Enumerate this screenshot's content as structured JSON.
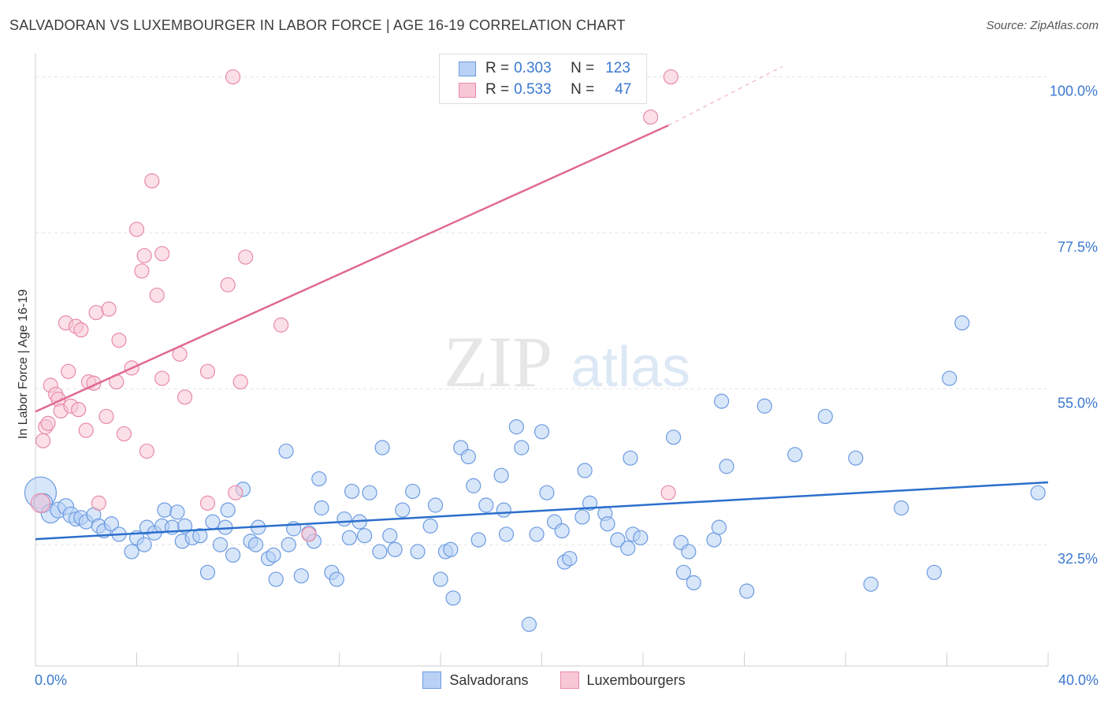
{
  "header": {
    "title": "SALVADORAN VS LUXEMBOURGER IN LABOR FORCE | AGE 16-19 CORRELATION CHART",
    "source": "Source: ZipAtlas.com"
  },
  "watermark": {
    "zip": "ZIP",
    "atlas": "atlas"
  },
  "legend": {
    "r_label": "R =",
    "n_label": "N =",
    "rows": [
      {
        "r": "0.303",
        "n": "123",
        "fill": "#b8d1f5",
        "stroke": "#6c9be0"
      },
      {
        "r": "0.533",
        "n": "47",
        "fill": "#f7c7d6",
        "stroke": "#e98aa8"
      }
    ]
  },
  "chart_data": {
    "type": "scatter",
    "title": "SALVADORAN VS LUXEMBOURGER IN LABOR FORCE | AGE 16-19 CORRELATION CHART",
    "xlabel": "",
    "ylabel": "In Labor Force | Age 16-19",
    "xlim": [
      0,
      40
    ],
    "ylim": [
      15,
      102
    ],
    "x_tick_labels": [
      "0.0%",
      "40.0%"
    ],
    "y_ticks": [
      32.5,
      55.0,
      77.5,
      100.0
    ],
    "y_tick_labels": [
      "32.5%",
      "55.0%",
      "77.5%",
      "100.0%"
    ],
    "grid": true,
    "legend_position": "top-center",
    "series": [
      {
        "name": "Salvadorans",
        "color": "#6c9be0",
        "fill": "#b8d1f5",
        "trend": {
          "x": [
            0,
            40
          ],
          "y": [
            33.3,
            41.5
          ],
          "color": "#2b6fcc"
        },
        "points": [
          [
            0.2,
            40,
            20
          ],
          [
            0.3,
            38.5,
            12
          ],
          [
            0.6,
            37,
            12
          ],
          [
            0.9,
            37.5,
            10
          ],
          [
            1.2,
            38,
            10
          ],
          [
            1.4,
            36.8,
            10
          ],
          [
            1.6,
            36.2,
            9
          ],
          [
            1.8,
            36.4,
            9
          ],
          [
            2.0,
            35.8,
            9
          ],
          [
            2.3,
            36.8,
            9
          ],
          [
            2.5,
            35.2,
            9
          ],
          [
            2.7,
            34.5,
            9
          ],
          [
            3.0,
            35.5,
            9
          ],
          [
            3.3,
            34,
            9
          ],
          [
            3.8,
            31.5,
            9
          ],
          [
            4.0,
            33.5,
            9
          ],
          [
            4.3,
            32.5,
            9
          ],
          [
            4.4,
            35,
            9
          ],
          [
            4.7,
            34.2,
            9
          ],
          [
            5.0,
            35.2,
            9
          ],
          [
            5.1,
            37.5,
            9
          ],
          [
            5.4,
            35,
            9
          ],
          [
            5.6,
            37.2,
            9
          ],
          [
            5.8,
            33,
            9
          ],
          [
            5.9,
            35.2,
            9
          ],
          [
            6.2,
            33.5,
            9
          ],
          [
            6.5,
            33.8,
            9
          ],
          [
            6.8,
            28.5,
            9
          ],
          [
            7.0,
            35.8,
            9
          ],
          [
            7.3,
            32.5,
            9
          ],
          [
            7.5,
            35,
            9
          ],
          [
            7.6,
            37.5,
            9
          ],
          [
            7.8,
            31,
            9
          ],
          [
            8.2,
            40.5,
            9
          ],
          [
            8.5,
            33,
            9
          ],
          [
            8.7,
            32.5,
            9
          ],
          [
            8.8,
            35,
            9
          ],
          [
            9.2,
            30.5,
            9
          ],
          [
            9.4,
            31,
            9
          ],
          [
            9.5,
            27.5,
            9
          ],
          [
            9.9,
            46,
            9
          ],
          [
            10.0,
            32.5,
            9
          ],
          [
            10.2,
            34.8,
            9
          ],
          [
            10.5,
            28,
            9
          ],
          [
            10.8,
            34.2,
            9
          ],
          [
            11.0,
            33,
            9
          ],
          [
            11.2,
            42,
            9
          ],
          [
            11.3,
            37.8,
            9
          ],
          [
            11.7,
            28.5,
            9
          ],
          [
            11.9,
            27.5,
            9
          ],
          [
            12.2,
            36.2,
            9
          ],
          [
            12.4,
            33.5,
            9
          ],
          [
            12.5,
            40.2,
            9
          ],
          [
            12.8,
            35.8,
            9
          ],
          [
            13.0,
            33.8,
            9
          ],
          [
            13.2,
            40,
            9
          ],
          [
            13.6,
            31.5,
            9
          ],
          [
            13.7,
            46.5,
            9
          ],
          [
            14.0,
            33.8,
            9
          ],
          [
            14.2,
            31.8,
            9
          ],
          [
            14.5,
            37.5,
            9
          ],
          [
            14.9,
            40.2,
            9
          ],
          [
            15.1,
            31.5,
            9
          ],
          [
            15.6,
            35.2,
            9
          ],
          [
            15.8,
            38.2,
            9
          ],
          [
            16.0,
            27.5,
            9
          ],
          [
            16.2,
            31.5,
            9
          ],
          [
            16.4,
            31.8,
            9
          ],
          [
            16.5,
            24.8,
            9
          ],
          [
            16.8,
            46.5,
            9
          ],
          [
            17.1,
            45.2,
            9
          ],
          [
            17.3,
            41,
            9
          ],
          [
            17.5,
            33.2,
            9
          ],
          [
            17.8,
            38.2,
            9
          ],
          [
            18.4,
            42.5,
            9
          ],
          [
            18.5,
            37.5,
            9
          ],
          [
            18.6,
            34,
            9
          ],
          [
            19.0,
            49.5,
            9
          ],
          [
            19.2,
            46.5,
            9
          ],
          [
            19.5,
            21,
            9
          ],
          [
            19.8,
            34,
            9
          ],
          [
            20.0,
            48.8,
            9
          ],
          [
            20.2,
            40,
            9
          ],
          [
            20.5,
            35.8,
            9
          ],
          [
            20.8,
            34.5,
            9
          ],
          [
            20.9,
            30,
            9
          ],
          [
            21.1,
            30.5,
            9
          ],
          [
            21.6,
            36.5,
            9
          ],
          [
            21.7,
            43.2,
            9
          ],
          [
            21.9,
            38.5,
            9
          ],
          [
            22.5,
            37,
            9
          ],
          [
            22.6,
            35.5,
            9
          ],
          [
            23.0,
            33.2,
            9
          ],
          [
            23.4,
            32,
            9
          ],
          [
            23.5,
            45,
            9
          ],
          [
            23.6,
            34,
            9
          ],
          [
            23.9,
            33.5,
            9
          ],
          [
            25.2,
            48,
            9
          ],
          [
            25.5,
            32.8,
            9
          ],
          [
            25.6,
            28.5,
            9
          ],
          [
            25.8,
            31.5,
            9
          ],
          [
            26.0,
            27,
            9
          ],
          [
            26.8,
            33.2,
            9
          ],
          [
            27.0,
            35,
            9
          ],
          [
            27.3,
            43.8,
            9
          ],
          [
            27.1,
            53.2,
            9
          ],
          [
            28.1,
            25.8,
            9
          ],
          [
            28.8,
            52.5,
            9
          ],
          [
            30.0,
            45.5,
            9
          ],
          [
            31.2,
            51,
            9
          ],
          [
            32.4,
            45,
            9
          ],
          [
            33.0,
            26.8,
            9
          ],
          [
            34.2,
            37.8,
            9
          ],
          [
            35.5,
            28.5,
            9
          ],
          [
            36.1,
            56.5,
            9
          ],
          [
            36.6,
            64.5,
            9
          ],
          [
            39.6,
            40,
            9
          ]
        ]
      },
      {
        "name": "Luxembourgers",
        "color": "#e98aa8",
        "fill": "#f7c7d6",
        "trend": {
          "x": [
            0,
            25
          ],
          "y": [
            51.7,
            93
          ],
          "color": "#e06a92"
        },
        "trend_dashed": {
          "x": [
            25,
            29.5
          ],
          "y": [
            93,
            101.5
          ]
        },
        "points": [
          [
            0.2,
            38.5,
            12
          ],
          [
            0.3,
            47.5,
            9
          ],
          [
            0.4,
            49.5,
            9
          ],
          [
            0.5,
            50,
            9
          ],
          [
            0.6,
            55.5,
            9
          ],
          [
            0.8,
            54.2,
            9
          ],
          [
            0.9,
            53.5,
            9
          ],
          [
            1.0,
            51.8,
            9
          ],
          [
            1.2,
            64.5,
            9
          ],
          [
            1.3,
            57.5,
            9
          ],
          [
            1.4,
            52.5,
            9
          ],
          [
            1.6,
            64,
            9
          ],
          [
            1.7,
            52,
            9
          ],
          [
            1.8,
            63.5,
            9
          ],
          [
            2.0,
            49,
            9
          ],
          [
            2.1,
            56,
            9
          ],
          [
            2.3,
            55.8,
            9
          ],
          [
            2.4,
            66,
            9
          ],
          [
            2.5,
            38.5,
            9
          ],
          [
            2.9,
            66.5,
            9
          ],
          [
            2.8,
            51,
            9
          ],
          [
            3.2,
            56,
            9
          ],
          [
            3.3,
            62,
            9
          ],
          [
            3.5,
            48.5,
            9
          ],
          [
            3.8,
            58,
            9
          ],
          [
            4.0,
            78,
            9
          ],
          [
            4.2,
            72,
            9
          ],
          [
            4.3,
            74.2,
            9
          ],
          [
            4.4,
            46,
            9
          ],
          [
            4.6,
            85,
            9
          ],
          [
            4.8,
            68.5,
            9
          ],
          [
            5.0,
            74.5,
            9
          ],
          [
            5.0,
            56.5,
            9
          ],
          [
            5.7,
            60,
            9
          ],
          [
            5.9,
            53.8,
            9
          ],
          [
            6.8,
            57.5,
            9
          ],
          [
            6.8,
            38.5,
            9
          ],
          [
            7.6,
            70,
            9
          ],
          [
            7.9,
            40,
            9
          ],
          [
            8.1,
            56,
            9
          ],
          [
            8.3,
            74,
            9
          ],
          [
            9.7,
            64.2,
            9
          ],
          [
            10.8,
            34,
            9
          ],
          [
            7.8,
            100,
            9
          ],
          [
            25.1,
            100,
            9
          ],
          [
            24.3,
            94.2,
            9
          ],
          [
            25.0,
            40,
            9
          ]
        ]
      }
    ]
  }
}
